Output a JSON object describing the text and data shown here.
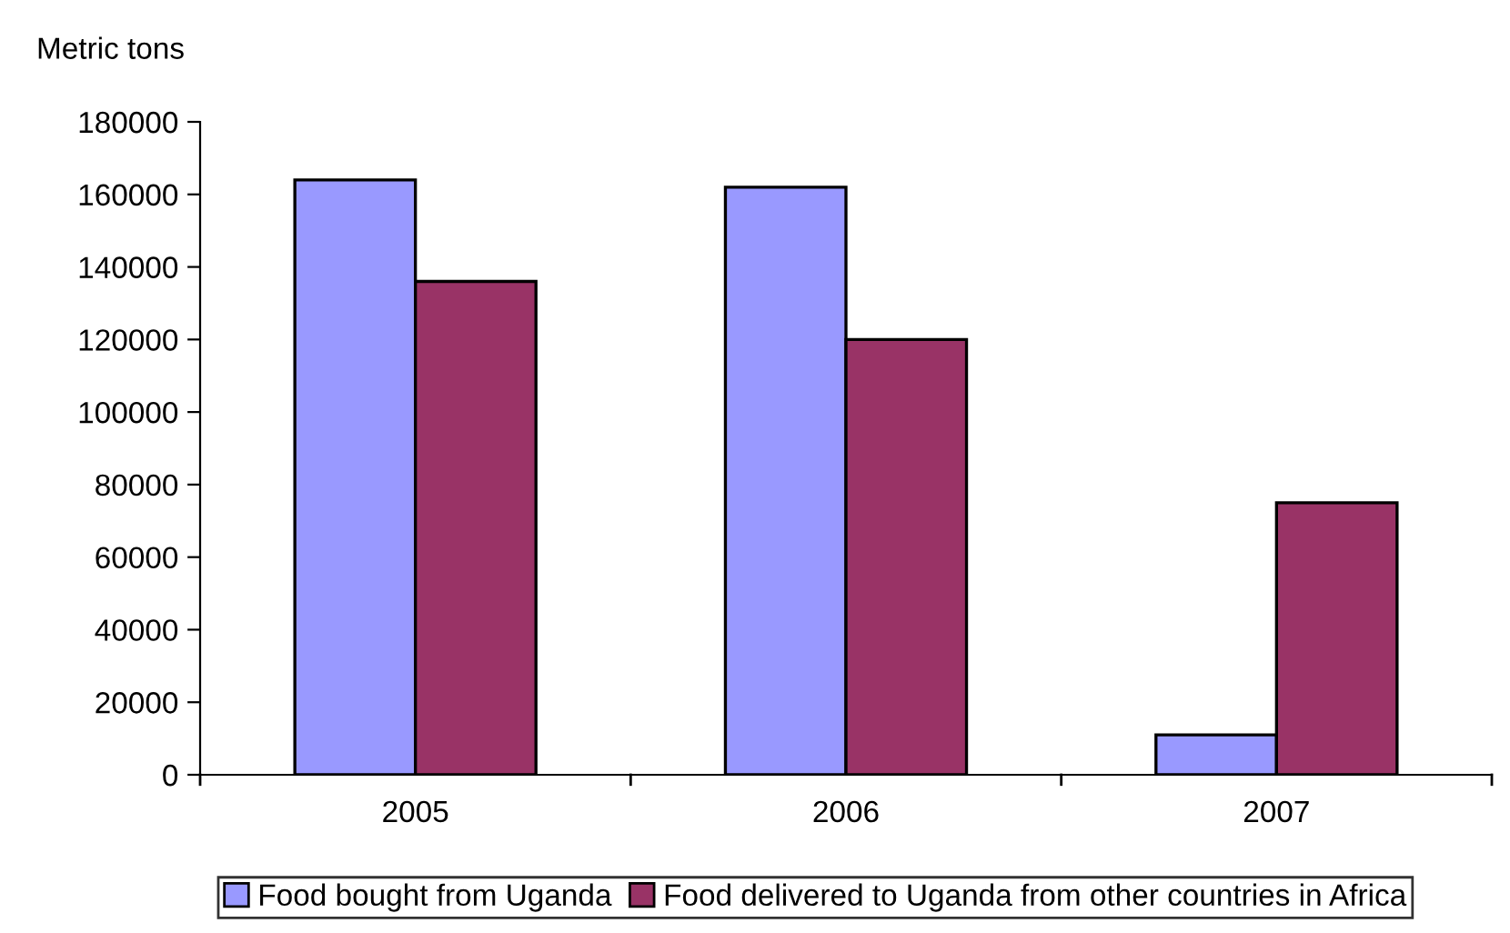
{
  "chart_data": {
    "type": "bar",
    "ylabel": "Metric tons",
    "categories": [
      "2005",
      "2006",
      "2007"
    ],
    "series": [
      {
        "name": "Food bought from Uganda",
        "color": "#9999ff",
        "values": [
          164000,
          162000,
          11000
        ]
      },
      {
        "name": "Food delivered to Uganda from other countries in Africa",
        "color": "#993366",
        "values": [
          136000,
          120000,
          75000
        ]
      }
    ],
    "ylim": [
      0,
      180000
    ],
    "yticks": [
      0,
      20000,
      40000,
      60000,
      80000,
      100000,
      120000,
      140000,
      160000,
      180000
    ],
    "grid": false,
    "legend": "bottom"
  }
}
